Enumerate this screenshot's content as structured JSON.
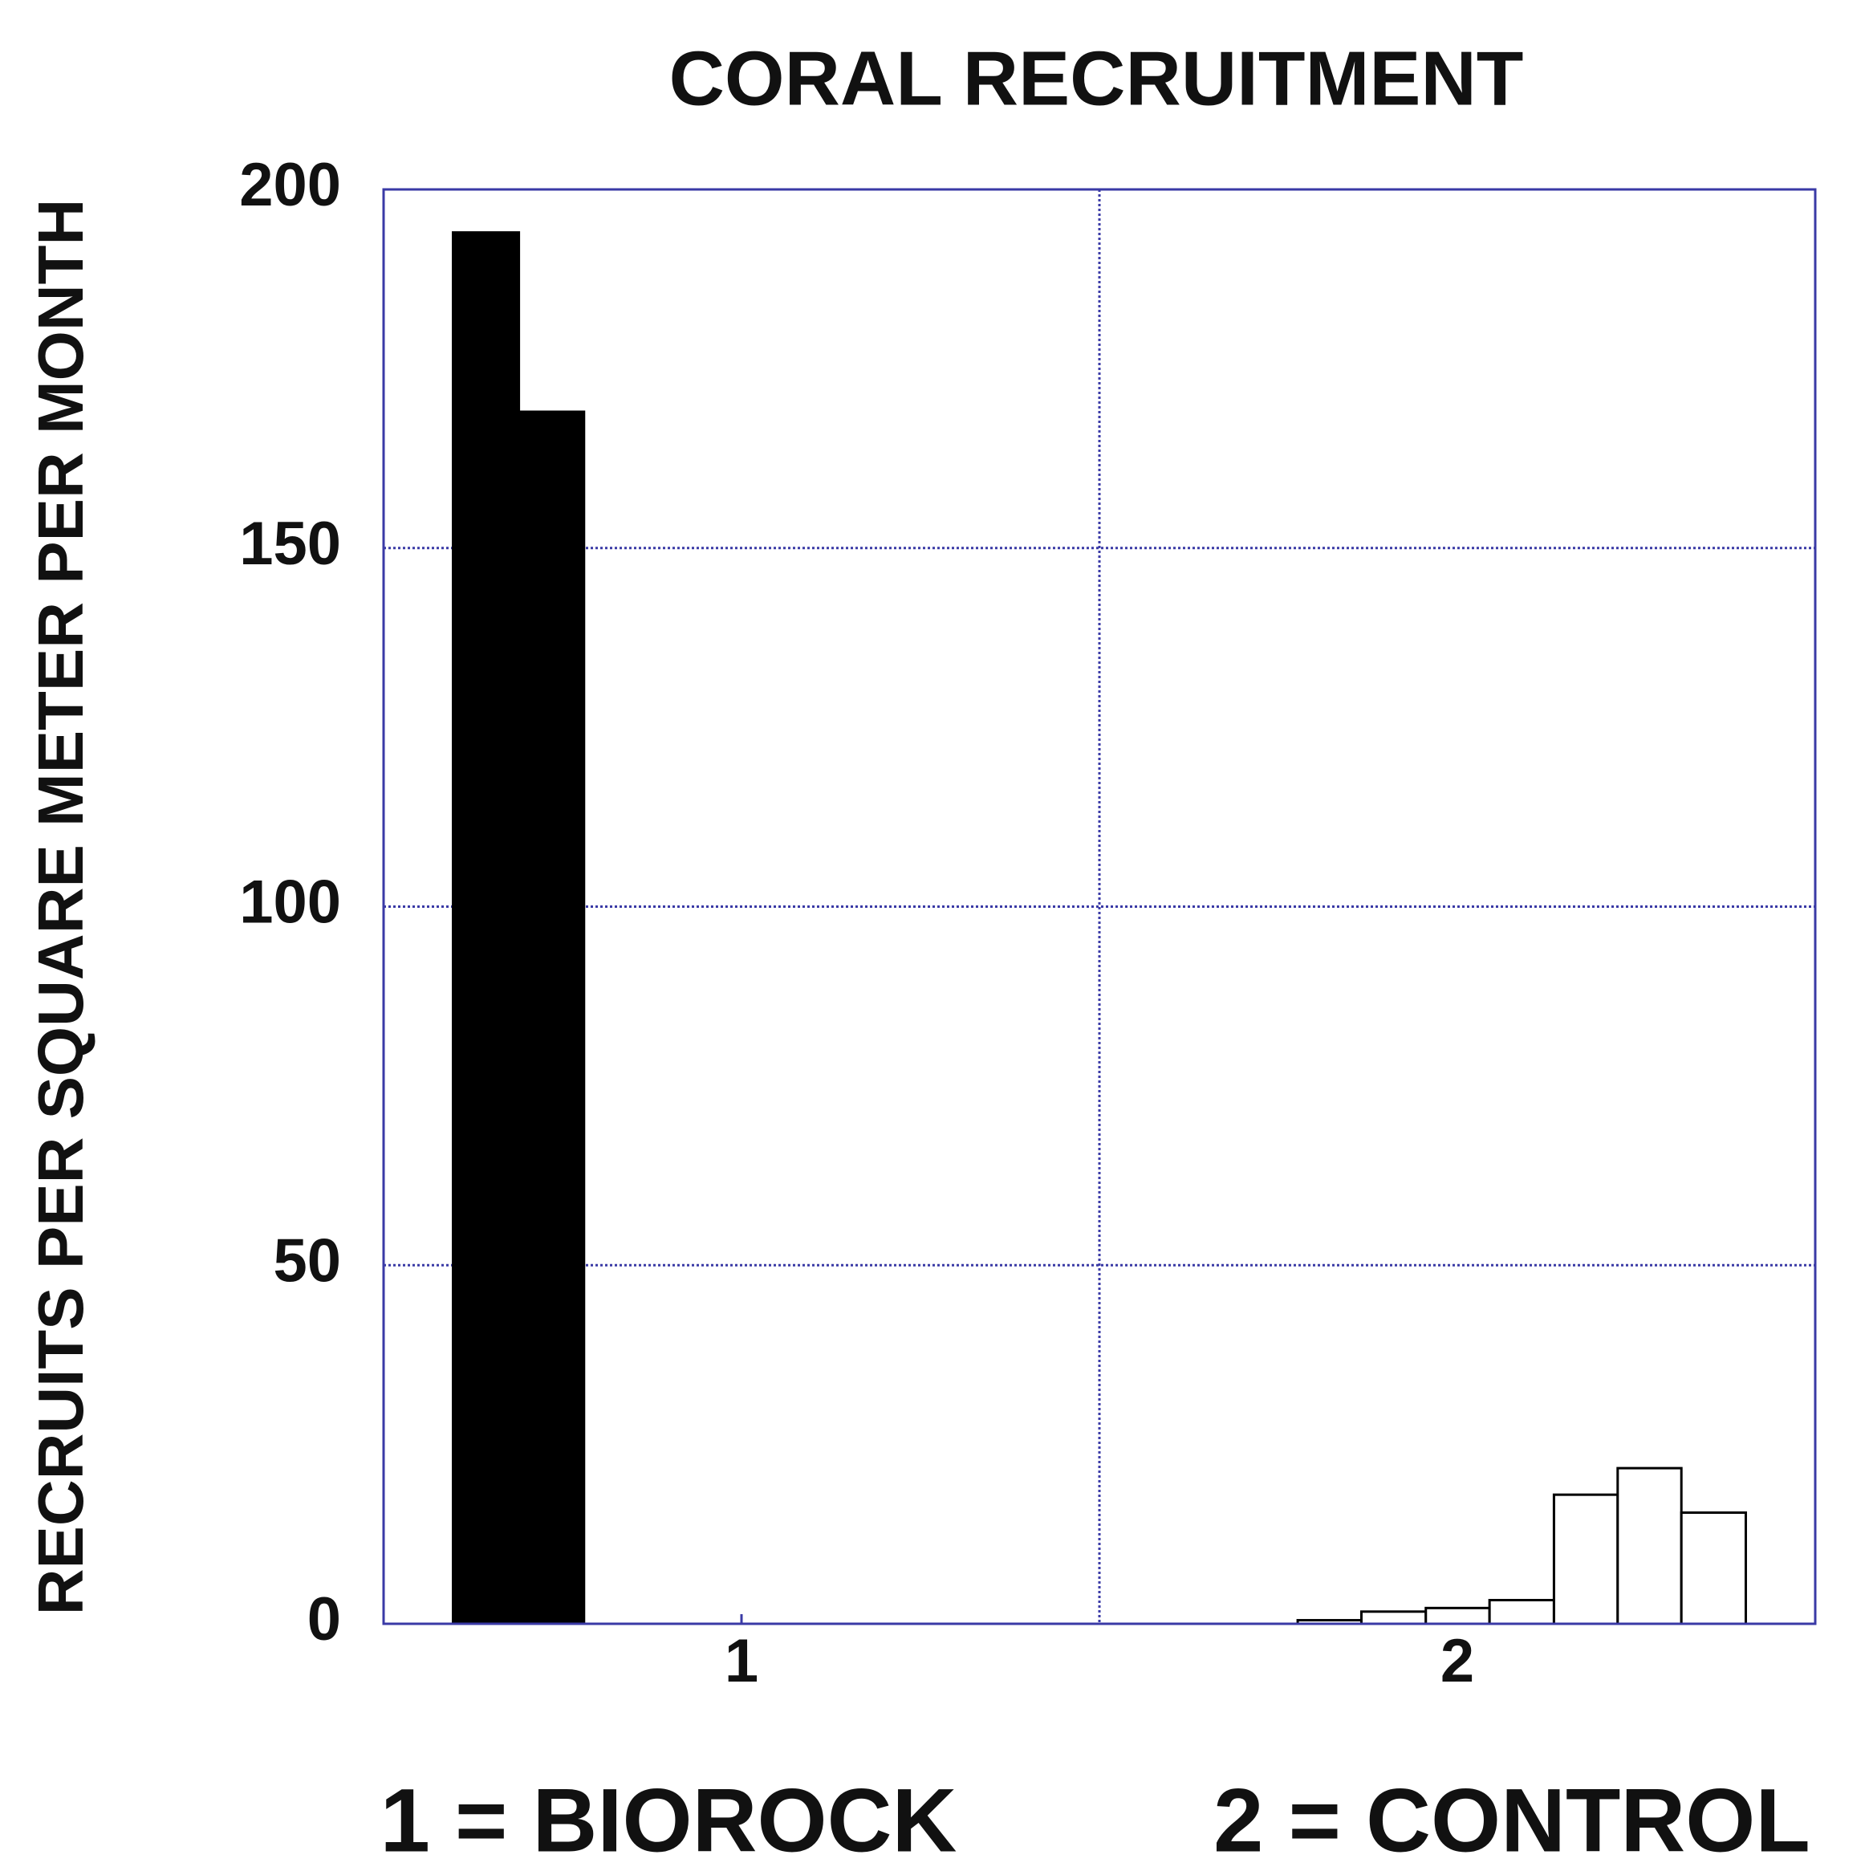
{
  "chart_data": {
    "type": "histogram",
    "title": "CORAL RECRUITMENT",
    "y_label": "RECRUITS PER SQUARE METER PER MONTH",
    "xlim": [
      0.5,
      2.5
    ],
    "xticks": [
      1,
      2
    ],
    "xgrid": [
      1.5
    ],
    "ylim": [
      0,
      200
    ],
    "yticks": [
      0,
      50,
      100,
      150,
      200
    ],
    "grid": true,
    "series": [
      {
        "name": "1 = BIOROCK",
        "color": "#000000",
        "bins": [
          0.597,
          0.689,
          0.78
        ],
        "values": [
          194,
          169
        ]
      },
      {
        "name": "2 = CONTROL",
        "color": "#ffffff",
        "bins": [
          1.777,
          1.866,
          1.956,
          2.045,
          2.135,
          2.224,
          2.313,
          2.403
        ],
        "values": [
          0.5,
          1.7,
          2.2,
          3.3,
          18,
          21.7,
          15.5
        ]
      }
    ]
  }
}
